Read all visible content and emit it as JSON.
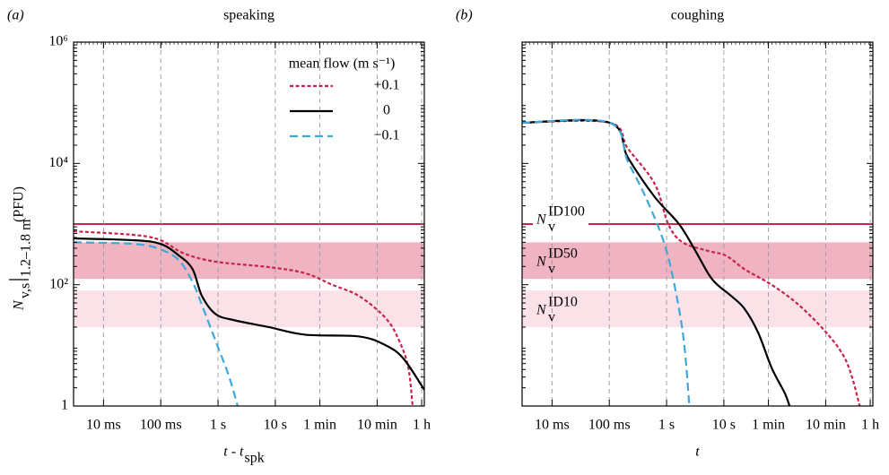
{
  "chart_data": [
    {
      "type": "line",
      "panel": "(a)",
      "title": "speaking",
      "xlabel": {
        "text": "t - t",
        "sub": "spk"
      },
      "ylabel": {
        "symbol": "N",
        "sub": "v,s",
        "eval": "1.2–1.8 m",
        "unit": "(PFU)"
      },
      "xscale": "log",
      "yscale": "log",
      "grid": true,
      "xlim": [
        0.003,
        4000
      ],
      "ylim": [
        1,
        1000000
      ],
      "xticks": [
        {
          "value": 0.01,
          "label": "10 ms"
        },
        {
          "value": 0.1,
          "label": "100 ms"
        },
        {
          "value": 1,
          "label": "1 s"
        },
        {
          "value": 10,
          "label": "10 s"
        },
        {
          "value": 60,
          "label": "1 min"
        },
        {
          "value": 600,
          "label": "10 min"
        },
        {
          "value": 3600,
          "label": "1 h"
        }
      ],
      "yticks": [
        1,
        {
          "value": 100,
          "label": "10²"
        },
        {
          "value": 10000,
          "label": "10⁴"
        },
        {
          "value": 1000000,
          "label": "10⁶"
        }
      ],
      "hline": {
        "value": 1000,
        "color": "#c8234d"
      },
      "bands": [
        {
          "range": [
            125,
            500
          ],
          "color": "#efb3c1"
        },
        {
          "range": [
            20,
            80
          ],
          "color": "#fbe2e8"
        }
      ],
      "legend": "upper right",
      "legend_title": "mean flow (m s⁻¹)",
      "series": [
        {
          "name": "+0.1",
          "color": "#c8234d",
          "dash": "dotted",
          "x": [
            0.003,
            0.035,
            0.1,
            0.25,
            0.9,
            7.7,
            33,
            98,
            290,
            850,
            1450,
            2100,
            2500
          ],
          "values": [
            760,
            660,
            540,
            330,
            240,
            195,
            155,
            100,
            65,
            28,
            12,
            4.3,
            1
          ]
        },
        {
          "name": "0",
          "color": "#000000",
          "dash": "solid",
          "x": [
            0.003,
            0.035,
            0.1,
            0.21,
            0.36,
            0.52,
            0.9,
            1.9,
            7.7,
            33,
            290,
            850,
            1740,
            4000
          ],
          "values": [
            580,
            540,
            470,
            300,
            180,
            66,
            33,
            26,
            20,
            15,
            14,
            10,
            6,
            1.85
          ]
        },
        {
          "name": "−0.1",
          "color": "#3ea8d8",
          "dash": "dashed",
          "x": [
            0.003,
            0.035,
            0.1,
            0.21,
            0.36,
            0.52,
            0.9,
            1.55,
            2.2
          ],
          "values": [
            500,
            470,
            380,
            250,
            110,
            47,
            12,
            3.1,
            1
          ]
        }
      ]
    },
    {
      "type": "line",
      "panel": "(b)",
      "title": "coughing",
      "xlabel": {
        "text": "t"
      },
      "xscale": "log",
      "yscale": "log",
      "grid": true,
      "xlim": [
        0.003,
        4000
      ],
      "ylim": [
        1,
        1000000
      ],
      "xticks": [
        {
          "value": 0.01,
          "label": "10 ms"
        },
        {
          "value": 0.1,
          "label": "100 ms"
        },
        {
          "value": 1,
          "label": "1 s"
        },
        {
          "value": 10,
          "label": "10 s"
        },
        {
          "value": 60,
          "label": "1 min"
        },
        {
          "value": 600,
          "label": "10 min"
        },
        {
          "value": 3600,
          "label": "1 h"
        }
      ],
      "yticks": [
        1,
        100,
        10000,
        1000000
      ],
      "hline": {
        "value": 1000,
        "color": "#c8234d",
        "label": {
          "symbol": "N",
          "sub": "v",
          "sup": "ID100"
        }
      },
      "bands": [
        {
          "range": [
            125,
            500
          ],
          "color": "#efb3c1",
          "label": {
            "symbol": "N",
            "sub": "v",
            "sup": "ID50"
          }
        },
        {
          "range": [
            20,
            80
          ],
          "color": "#fbe2e8",
          "label": {
            "symbol": "N",
            "sub": "v",
            "sup": "ID10"
          }
        }
      ],
      "series": [
        {
          "color": "#c8234d",
          "dash": "dotted",
          "x": [
            0.003,
            0.1,
            0.21,
            0.62,
            1.07,
            1.9,
            5.4,
            11,
            23,
            68,
            200,
            590,
            1200,
            1730,
            2350
          ],
          "values": [
            47000,
            47000,
            17700,
            4600,
            1000,
            500,
            360,
            300,
            180,
            100,
            47,
            17,
            7,
            3,
            1
          ]
        },
        {
          "color": "#000000",
          "dash": "solid",
          "x": [
            0.003,
            0.1,
            0.21,
            0.62,
            1.65,
            3.2,
            5.4,
            7.7,
            13.5,
            23,
            40,
            68,
            117,
            140
          ],
          "values": [
            47000,
            47000,
            12600,
            2800,
            1000,
            360,
            150,
            100,
            65,
            40,
            16,
            4.3,
            1.6,
            1
          ]
        },
        {
          "color": "#3ea8d8",
          "dash": "dashed",
          "x": [
            0.003,
            0.1,
            0.21,
            0.43,
            0.9,
            1.4,
            2,
            2.5
          ],
          "values": [
            47000,
            47000,
            10800,
            2800,
            500,
            90,
            12,
            1
          ]
        }
      ]
    }
  ]
}
